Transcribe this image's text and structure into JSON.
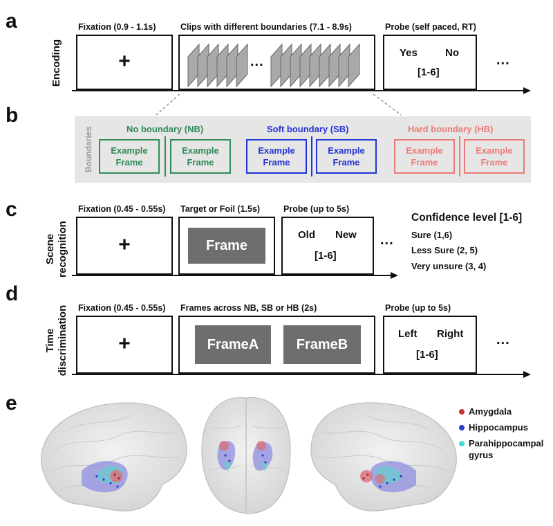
{
  "panels": {
    "a": {
      "letter": "a",
      "side_label": "Encoding",
      "fixation_caption": "Fixation (0.9 - 1.1s)",
      "fixation_symbol": "+",
      "clips_caption": "Clips with different boundaries (7.1 - 8.9s)",
      "clips_ellipsis": "...",
      "probe_caption": "Probe (self paced, RT)",
      "probe_yes": "Yes",
      "probe_no": "No",
      "probe_scale": "[1-6]",
      "trailing_ellipsis": "..."
    },
    "b": {
      "letter": "b",
      "side_label": "Boundaries",
      "groups": [
        {
          "title": "No boundary (NB)",
          "color": "#2e8b57",
          "frames": [
            {
              "line1": "Example",
              "line2": "Frame"
            },
            {
              "line1": "Example",
              "line2": "Frame"
            }
          ]
        },
        {
          "title": "Soft boundary (SB)",
          "color": "#2333d6",
          "frames": [
            {
              "line1": "Example",
              "line2": "Frame"
            },
            {
              "line1": "Example",
              "line2": "Frame"
            }
          ]
        },
        {
          "title": "Hard boundary (HB)",
          "color": "#ec7a78",
          "frames": [
            {
              "line1": "Example",
              "line2": "Frame"
            },
            {
              "line1": "Example",
              "line2": "Frame"
            }
          ]
        }
      ]
    },
    "c": {
      "letter": "c",
      "side_label_line1": "Scene",
      "side_label_line2": "recognition",
      "fixation_caption": "Fixation (0.45 - 0.55s)",
      "fixation_symbol": "+",
      "target_caption": "Target or Foil (1.5s)",
      "target_frame": "Frame",
      "probe_caption": "Probe (up to 5s)",
      "probe_old": "Old",
      "probe_new": "New",
      "probe_scale": "[1-6]",
      "trailing_ellipsis": "...",
      "confidence_title": "Confidence level [1-6]",
      "confidence_items": [
        "Sure (1,6)",
        "Less Sure (2, 5)",
        "Very unsure (3, 4)"
      ]
    },
    "d": {
      "letter": "d",
      "side_label_line1": "Time",
      "side_label_line2": "discrimination",
      "fixation_caption": "Fixation (0.45 - 0.55s)",
      "fixation_symbol": "+",
      "frames_caption": "Frames across NB, SB or HB (2s)",
      "frame_a": "FrameA",
      "frame_b": "FrameB",
      "probe_caption": "Probe (up to 5s)",
      "probe_left": "Left",
      "probe_right": "Right",
      "probe_scale": "[1-6]",
      "trailing_ellipsis": "..."
    },
    "e": {
      "letter": "e",
      "legend": [
        {
          "label": "Amygdala",
          "color": "#c0392b"
        },
        {
          "label": "Hippocampus",
          "color": "#2c3ec9"
        },
        {
          "label": "Parahippocampal gyrus",
          "color": "#40e0d0",
          "line1": "Parahippocampal",
          "line2": "gyrus"
        }
      ],
      "views": [
        "lateral-left-brain",
        "top-brain",
        "lateral-right-brain"
      ]
    }
  }
}
